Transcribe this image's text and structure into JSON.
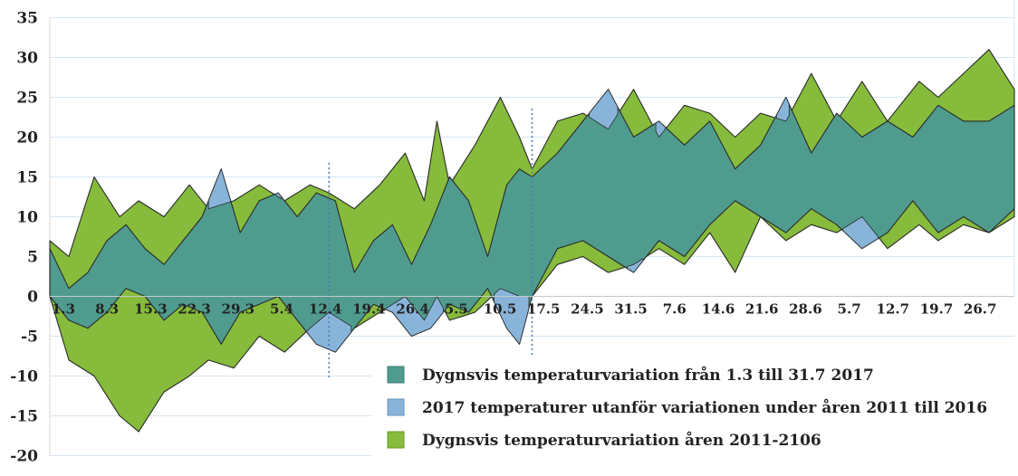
{
  "colors": {
    "green": "#86bb3c",
    "teal": "#4f9c8f",
    "blue": "#89b4da",
    "outline": "#2a2a2a",
    "grid": "#d6e6f3",
    "divider": "#4a78b4"
  },
  "chart_data": {
    "type": "area",
    "ylim": [
      -20,
      35
    ],
    "y_ticks": [
      35,
      30,
      25,
      20,
      15,
      10,
      5,
      0,
      -5,
      -10,
      -15,
      -20
    ],
    "x_tick_labels": [
      "1.3",
      "8.3",
      "15.3",
      "22.3",
      "29.3",
      "5.4",
      "12.4",
      "19.4",
      "26.4",
      "5.5",
      "10.5",
      "17.5",
      "24.5",
      "31.5",
      "7.6",
      "14.6",
      "21.6",
      "28.6",
      "5.7",
      "12.7",
      "19.7",
      "26.7"
    ],
    "divider_days": [
      44,
      76
    ],
    "legend": [
      {
        "label": "Dygnsvis temperaturvariation från 1.3 till 31.7 2017",
        "color_key": "teal"
      },
      {
        "label": "2017 temperaturer utanför variationen under åren 2011 till 2016",
        "color_key": "blue"
      },
      {
        "label": "Dygnsvis temperaturvariation åren 2011-2106",
        "color_key": "green"
      }
    ],
    "series": [
      {
        "name": "Dygnsvis temperaturvariation åren 2011-2106",
        "role": "historical_range",
        "x_days": [
          0,
          3,
          7,
          11,
          14,
          18,
          22,
          25,
          29,
          33,
          37,
          41,
          44,
          48,
          52,
          56,
          59,
          61,
          63,
          67,
          71,
          74,
          76,
          80,
          84,
          88,
          92,
          96,
          100,
          104,
          108,
          112,
          116,
          120,
          124,
          128,
          132,
          137,
          140,
          144,
          148,
          152
        ],
        "max": [
          7,
          5,
          15,
          10,
          12,
          10,
          14,
          11,
          12,
          14,
          12,
          14,
          13,
          11,
          14,
          18,
          12,
          22,
          14,
          19,
          25,
          20,
          16,
          22,
          23,
          21,
          26,
          20,
          24,
          23,
          20,
          23,
          22,
          28,
          22,
          27,
          22,
          27,
          25,
          28,
          31,
          26
        ],
        "min": [
          0,
          -8,
          -10,
          -15,
          -17,
          -12,
          -10,
          -8,
          -9,
          -5,
          -7,
          -4,
          -2,
          -4,
          -2,
          0,
          -3,
          0,
          -3,
          -2,
          1,
          0,
          0,
          4,
          5,
          3,
          4,
          6,
          4,
          8,
          3,
          10,
          7,
          9,
          8,
          10,
          6,
          9,
          7,
          9,
          8,
          10
        ]
      },
      {
        "name": "Dygnsvis temperaturvariation från 1.3 till 31.7 2017",
        "role": "range_2017",
        "x_days": [
          0,
          3,
          6,
          9,
          12,
          15,
          18,
          21,
          24,
          27,
          30,
          33,
          36,
          39,
          42,
          45,
          48,
          51,
          54,
          57,
          60,
          63,
          66,
          69,
          72,
          74,
          76,
          80,
          84,
          88,
          92,
          96,
          100,
          104,
          108,
          112,
          116,
          120,
          124,
          128,
          132,
          136,
          140,
          144,
          148,
          152
        ],
        "max": [
          6,
          1,
          3,
          7,
          9,
          6,
          4,
          7,
          10,
          16,
          8,
          12,
          13,
          10,
          13,
          12,
          3,
          7,
          9,
          4,
          9,
          15,
          12,
          5,
          14,
          16,
          15,
          18,
          22,
          26,
          20,
          22,
          19,
          22,
          16,
          19,
          25,
          18,
          23,
          20,
          22,
          20,
          24,
          22,
          22,
          24
        ],
        "min": [
          0,
          -3,
          -4,
          -2,
          1,
          0,
          -3,
          -1,
          -2,
          -6,
          -2,
          -1,
          0,
          -3,
          -6,
          -7,
          -4,
          -1,
          -2,
          -5,
          -4,
          -1,
          -2,
          1,
          -4,
          -6,
          0,
          6,
          7,
          5,
          3,
          7,
          5,
          9,
          12,
          10,
          8,
          11,
          9,
          6,
          8,
          12,
          8,
          10,
          8,
          11
        ]
      }
    ]
  }
}
